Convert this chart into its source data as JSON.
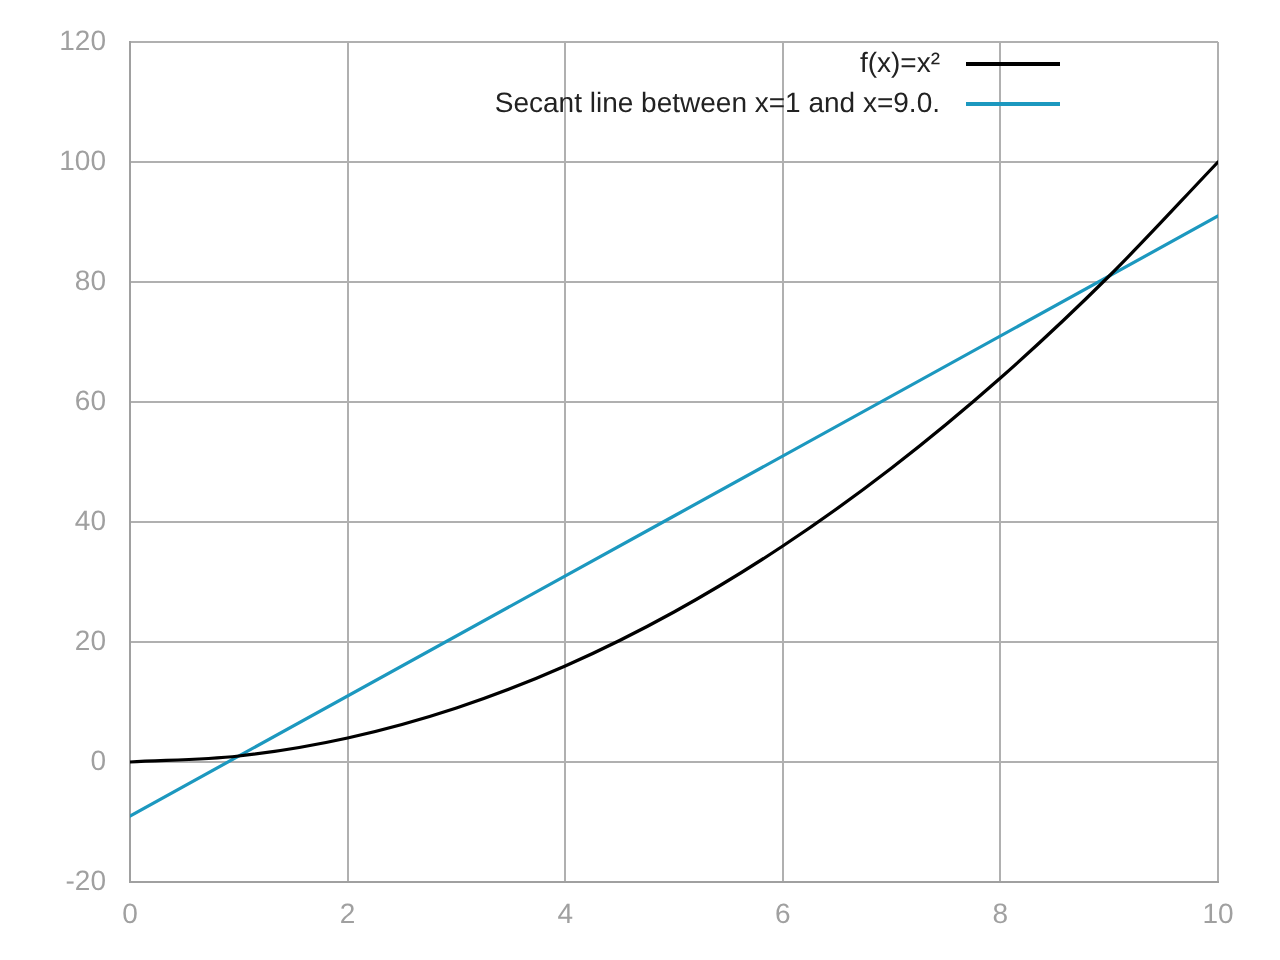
{
  "chart_data": {
    "type": "line",
    "x": [
      0,
      1,
      2,
      3,
      4,
      5,
      6,
      7,
      8,
      9,
      10
    ],
    "series": [
      {
        "name": "f(x)=x²",
        "color": "#000000",
        "values": [
          0,
          1,
          4,
          9,
          16,
          25,
          36,
          49,
          64,
          81,
          100
        ]
      },
      {
        "name": "Secant line between x=1 and x=9.0.",
        "color": "#1c98bf",
        "x": [
          0,
          10
        ],
        "values": [
          -9,
          91
        ]
      }
    ],
    "xlim": [
      0,
      10
    ],
    "xticks": [
      0,
      2,
      4,
      6,
      8,
      10
    ],
    "ylim": [
      -20,
      120
    ],
    "yticks": [
      -20,
      0,
      20,
      40,
      60,
      80,
      100,
      120
    ],
    "grid": true,
    "legend": "top right",
    "marker": "none",
    "line_style": "solid"
  }
}
